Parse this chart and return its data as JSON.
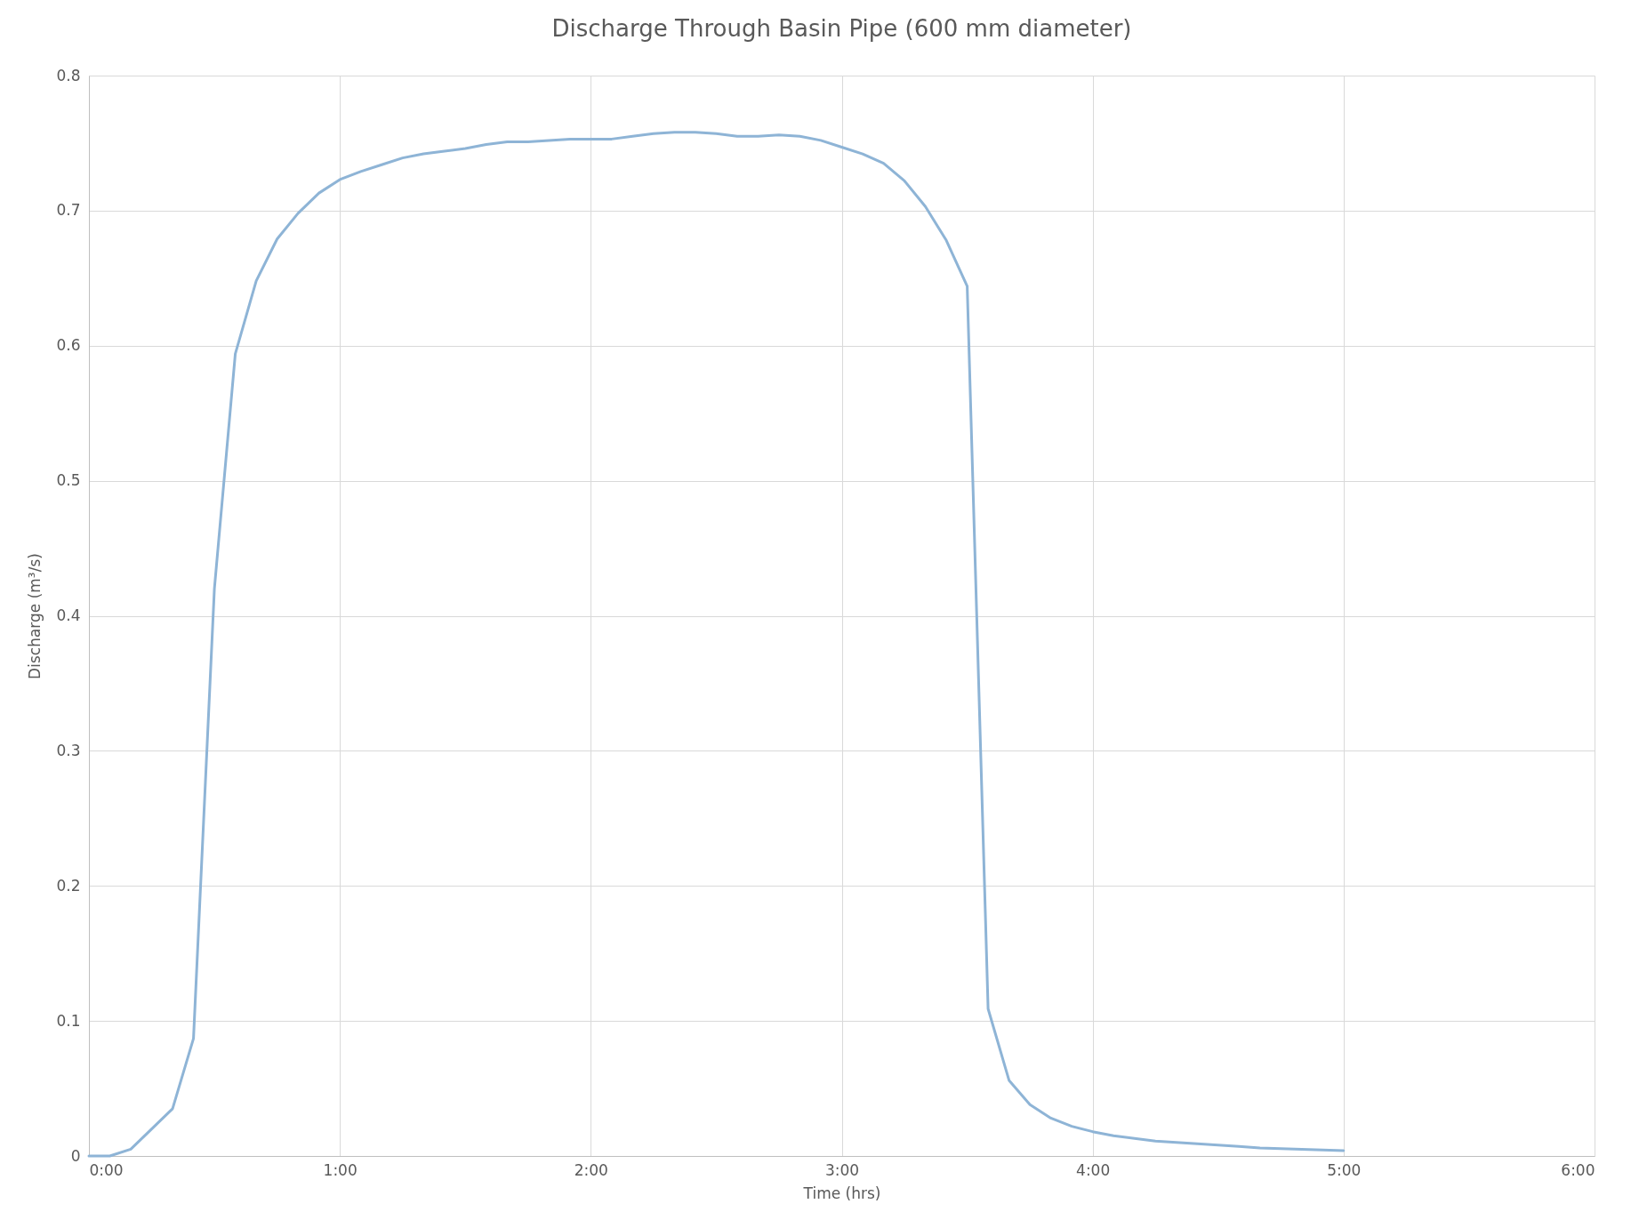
{
  "chart_data": {
    "type": "line",
    "title": "Discharge Through Basin Pipe (600 mm diameter)",
    "xlabel": "Time (hrs)",
    "ylabel": "Discharge (m³/s)",
    "x": [
      0,
      0.0833,
      0.1667,
      0.25,
      0.3333,
      0.4167,
      0.5,
      0.5833,
      0.6667,
      0.75,
      0.8333,
      0.9167,
      1.0,
      1.0833,
      1.1667,
      1.25,
      1.3333,
      1.4167,
      1.5,
      1.5833,
      1.6667,
      1.75,
      1.8333,
      1.9167,
      2.0,
      2.0833,
      2.1667,
      2.25,
      2.3333,
      2.4167,
      2.5,
      2.5833,
      2.6667,
      2.75,
      2.8333,
      2.9167,
      3.0,
      3.0833,
      3.1667,
      3.25,
      3.3333,
      3.4167,
      3.5,
      3.5833,
      3.6667,
      3.75,
      3.8333,
      3.9167,
      4.0,
      4.0833,
      4.1667,
      4.25,
      4.3333,
      4.4167,
      4.5,
      4.5833,
      4.6667,
      4.75,
      4.8333,
      4.9167,
      5.0
    ],
    "series": [
      {
        "color": "#8eb4d6",
        "values": [
          0,
          0,
          0.005,
          0.02,
          0.035,
          0.087,
          0.42,
          0.594,
          0.648,
          0.679,
          0.698,
          0.713,
          0.723,
          0.729,
          0.734,
          0.739,
          0.742,
          0.744,
          0.746,
          0.749,
          0.751,
          0.751,
          0.752,
          0.753,
          0.753,
          0.753,
          0.755,
          0.757,
          0.758,
          0.758,
          0.757,
          0.755,
          0.755,
          0.756,
          0.755,
          0.752,
          0.747,
          0.742,
          0.735,
          0.722,
          0.703,
          0.678,
          0.644,
          0.109,
          0.056,
          0.038,
          0.028,
          0.022,
          0.018,
          0.015,
          0.013,
          0.011,
          0.01,
          0.009,
          0.008,
          0.007,
          0.006,
          0.0055,
          0.005,
          0.0045,
          0.004
        ]
      }
    ],
    "xlim": [
      0,
      6
    ],
    "xticks": [
      {
        "value": 0,
        "label": "0:00"
      },
      {
        "value": 1,
        "label": "1:00"
      },
      {
        "value": 2,
        "label": "2:00"
      },
      {
        "value": 3,
        "label": "3:00"
      },
      {
        "value": 4,
        "label": "4:00"
      },
      {
        "value": 5,
        "label": "5:00"
      },
      {
        "value": 6,
        "label": "6:00"
      }
    ],
    "ylim": [
      0,
      0.8
    ],
    "yticks": [
      0,
      0.1,
      0.2,
      0.3,
      0.4,
      0.5,
      0.6,
      0.7,
      0.8
    ],
    "grid": true,
    "marker": "none",
    "line_style": "solid"
  }
}
